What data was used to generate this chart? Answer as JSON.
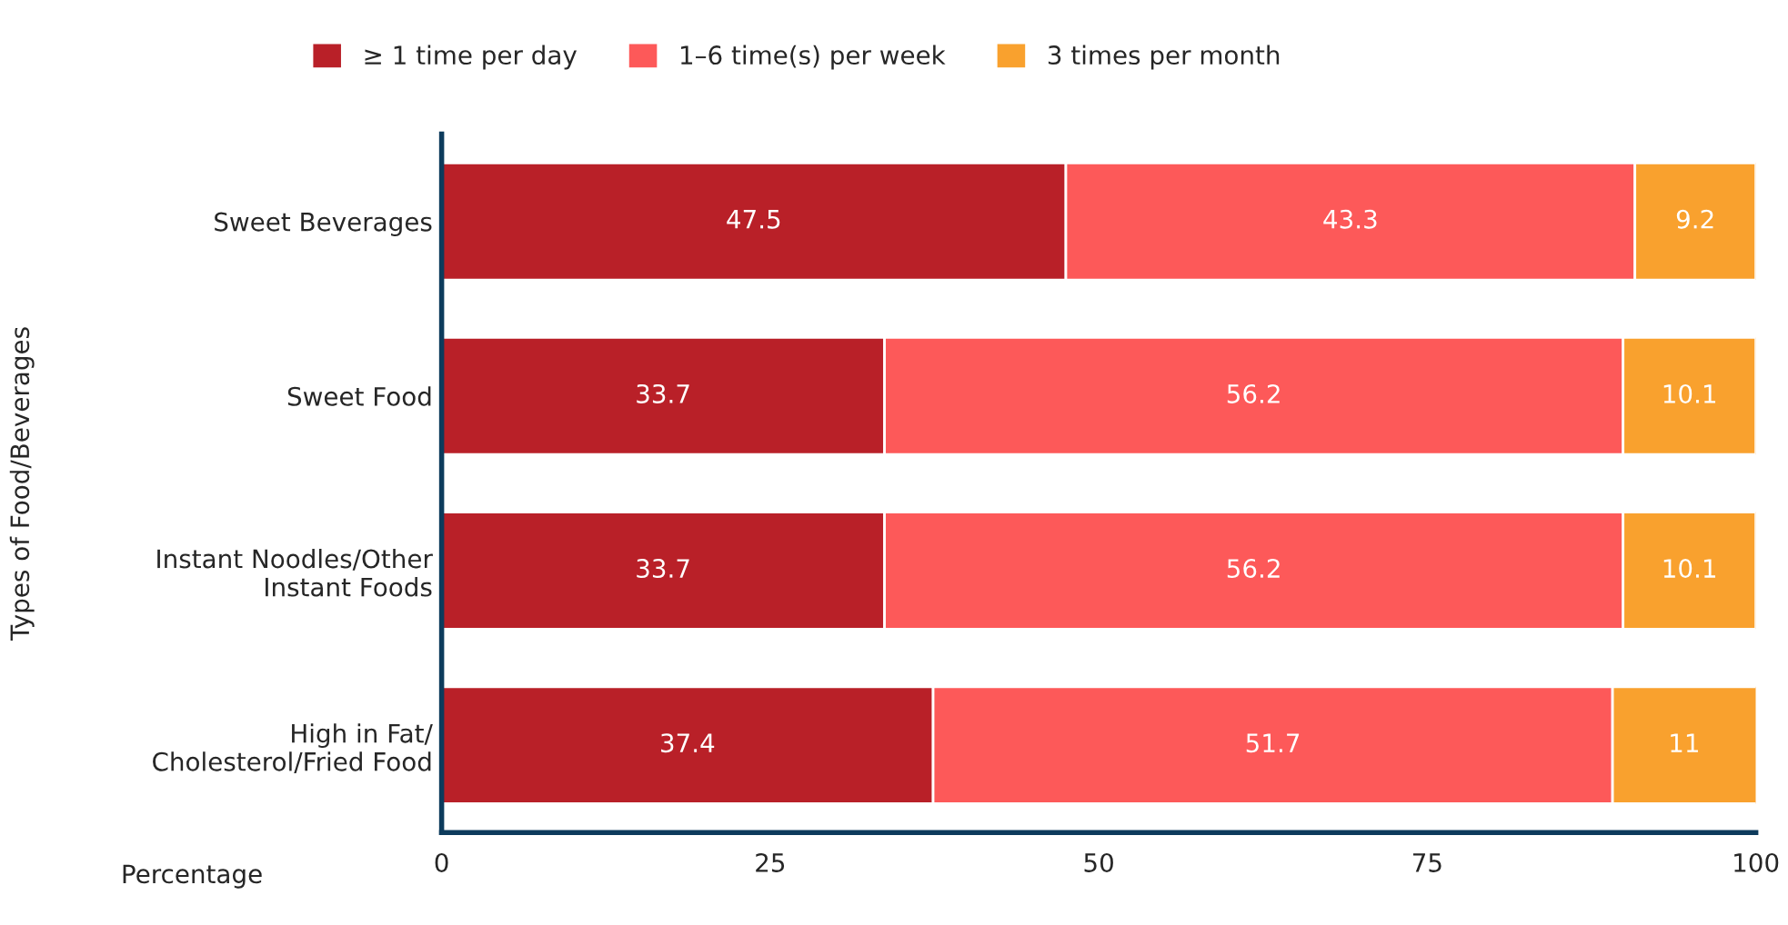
{
  "chart_data": {
    "type": "bar",
    "orientation": "horizontal",
    "stacked": true,
    "xlabel": "Percentage",
    "ylabel": "Types of Food/Beverages",
    "categories": [
      "Sweet Beverages",
      "Sweet Food",
      "Instant Noodles/Other Instant Foods",
      "High in Fat/ Cholesterol/Fried Food"
    ],
    "series": [
      {
        "name": "≥ 1 time per day",
        "color": "#b92028",
        "values": [
          47.5,
          33.7,
          33.7,
          37.4
        ]
      },
      {
        "name": "1–6 time(s) per week",
        "color": "#fd5959",
        "values": [
          43.3,
          56.2,
          56.2,
          51.7
        ]
      },
      {
        "name": "3 times per month",
        "color": "#f9a12e",
        "values": [
          9.2,
          10.1,
          10.1,
          11
        ]
      }
    ],
    "xlim": [
      0,
      100
    ],
    "xticks": [
      0,
      25,
      50,
      75,
      100
    ],
    "grid": false,
    "legend": "top",
    "data_labels": true
  }
}
